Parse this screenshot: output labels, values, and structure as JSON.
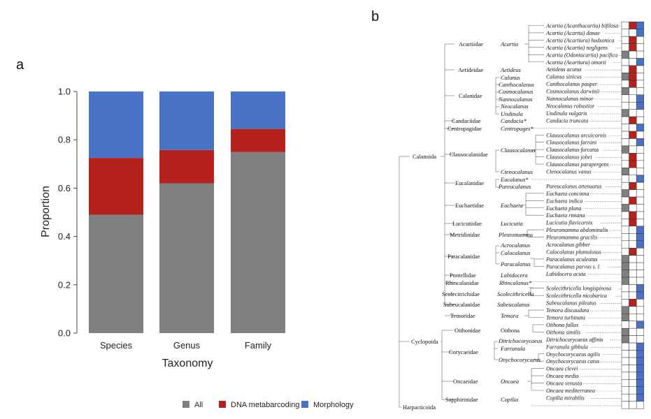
{
  "panel_a": {
    "letter": "a",
    "chart_data": {
      "type": "bar",
      "stacked": true,
      "categories": [
        "Species",
        "Genus",
        "Family"
      ],
      "series": [
        {
          "name": "All",
          "color": "#808080",
          "values": [
            0.49,
            0.62,
            0.75
          ]
        },
        {
          "name": "DNA metabarcoding",
          "color": "#B5211C",
          "values": [
            0.235,
            0.138,
            0.095
          ]
        },
        {
          "name": "Morphology",
          "color": "#4A72C4",
          "values": [
            0.275,
            0.242,
            0.155
          ]
        }
      ],
      "xlabel": "Taxonomy",
      "ylabel": "Proportion",
      "ylim": [
        0,
        1
      ],
      "yticks": [
        "0.0",
        "0.2",
        "0.4",
        "0.6",
        "0.8",
        "1.0"
      ],
      "grid": false,
      "legend_position": "bottom"
    }
  },
  "panel_b": {
    "letter": "b",
    "colors": {
      "all": "#808080",
      "dna": "#B5211C",
      "morph": "#4A72C4"
    },
    "orders": [
      {
        "name": "Calanoida"
      },
      {
        "name": "Cyclopoida"
      },
      {
        "name": "Harpacticoida"
      }
    ],
    "families": [
      {
        "name": "Acartiidae"
      },
      {
        "name": "Aetideidae"
      },
      {
        "name": "Calanidae"
      },
      {
        "name": "Candaciidae"
      },
      {
        "name": "Centropagidae"
      },
      {
        "name": "Clausocalanidae"
      },
      {
        "name": "Eucalanidae"
      },
      {
        "name": "Euchaetidae"
      },
      {
        "name": "Lucicutiidae"
      },
      {
        "name": "Metridinidae"
      },
      {
        "name": "Paracalanidae"
      },
      {
        "name": "Pontellidae"
      },
      {
        "name": "Rhincalanidae"
      },
      {
        "name": "Scolecitrichidae"
      },
      {
        "name": "Subeucalanidae"
      },
      {
        "name": "Temoridae"
      },
      {
        "name": "Oithonidae"
      },
      {
        "name": "Corycaeidae"
      },
      {
        "name": "Oncaeidae"
      },
      {
        "name": "Sapphirinidae"
      }
    ],
    "genera": [
      {
        "name": "Acartia"
      },
      {
        "name": "Aetideus"
      },
      {
        "name": "Calanus"
      },
      {
        "name": "Canthocalanus"
      },
      {
        "name": "Cosmocalanus"
      },
      {
        "name": "Nannocalanus"
      },
      {
        "name": "Neocalanus"
      },
      {
        "name": "Undinula"
      },
      {
        "name": "Candacia*"
      },
      {
        "name": "Centropages*"
      },
      {
        "name": "Clausocalanus"
      },
      {
        "name": "Ctenocalanus"
      },
      {
        "name": "Eucalanus*"
      },
      {
        "name": "Pareucalanus"
      },
      {
        "name": "Euchaeta"
      },
      {
        "name": "Lucicutia"
      },
      {
        "name": "Pleuromamma"
      },
      {
        "name": "Acrocalanus"
      },
      {
        "name": "Calocalanus"
      },
      {
        "name": "Paracalanus"
      },
      {
        "name": "Labidocera"
      },
      {
        "name": "Rhincalanus*"
      },
      {
        "name": "Scolecithricella"
      },
      {
        "name": "Subeucalanus"
      },
      {
        "name": "Temora"
      },
      {
        "name": "Oithona"
      },
      {
        "name": "Ditrichocorycaeus"
      },
      {
        "name": "Farranula"
      },
      {
        "name": "Onychocorycaeus"
      },
      {
        "name": "Oncaea"
      },
      {
        "name": "Copilia"
      }
    ],
    "species": [
      {
        "name": "Acartia (Acanthacartia) bifilosa",
        "cells": [
          0,
          1,
          1
        ]
      },
      {
        "name": "Acartia (Acartia) danae",
        "cells": [
          0,
          0,
          1
        ]
      },
      {
        "name": "Acartia (Acartiura) hudsonica",
        "cells": [
          0,
          1,
          0
        ]
      },
      {
        "name": "Acartia (Acartia) negligens",
        "cells": [
          0,
          1,
          0
        ]
      },
      {
        "name": "Acartia (Odontacartia) pacifica",
        "cells": [
          1,
          0,
          0
        ]
      },
      {
        "name": "Acartia (Acartiura) omorii",
        "cells": [
          0,
          0,
          1
        ]
      },
      {
        "name": "Aetideus acutus",
        "cells": [
          0,
          1,
          0
        ]
      },
      {
        "name": "Calanus sinicus",
        "cells": [
          1,
          1,
          0
        ]
      },
      {
        "name": "Canthocalanus pauper",
        "cells": [
          0,
          1,
          0
        ]
      },
      {
        "name": "Cosmocalanus darwinii",
        "cells": [
          1,
          0,
          0
        ]
      },
      {
        "name": "Nannocalanus minor",
        "cells": [
          0,
          0,
          1
        ]
      },
      {
        "name": "Neocalanus robustior",
        "cells": [
          0,
          0,
          1
        ]
      },
      {
        "name": "Undinula vulgaris",
        "cells": [
          1,
          0,
          0
        ]
      },
      {
        "name": "Candacia truncata",
        "cells": [
          0,
          1,
          0
        ]
      },
      {
        "name": "",
        "cells": [
          0,
          0,
          1
        ]
      },
      {
        "name": "Clausocalanus arcuicornis",
        "cells": [
          0,
          1,
          0
        ]
      },
      {
        "name": "Clausocalanus farrani",
        "cells": [
          0,
          0,
          1
        ]
      },
      {
        "name": "Clausocalanus furcatus",
        "cells": [
          1,
          0,
          0
        ]
      },
      {
        "name": "Clausocalanus jobei",
        "cells": [
          0,
          1,
          0
        ]
      },
      {
        "name": "Clausocalanus parapergens",
        "cells": [
          0,
          1,
          0
        ]
      },
      {
        "name": "Ctenocalanus vanus",
        "cells": [
          1,
          0,
          0
        ]
      },
      {
        "name": "",
        "cells": [
          0,
          0,
          1
        ]
      },
      {
        "name": "Pareucalanus attenuatus",
        "cells": [
          0,
          1,
          0
        ]
      },
      {
        "name": "Euchaeta concinna",
        "cells": [
          1,
          0,
          0
        ]
      },
      {
        "name": "Euchaeta indica",
        "cells": [
          0,
          1,
          0
        ]
      },
      {
        "name": "Euchaeta plana",
        "cells": [
          1,
          0,
          0
        ]
      },
      {
        "name": "Euchaeta rimana",
        "cells": [
          0,
          1,
          0
        ]
      },
      {
        "name": "Lucicutia flavicornis",
        "cells": [
          0,
          1,
          0
        ]
      },
      {
        "name": "Pleuromamma abdominalis",
        "cells": [
          0,
          0,
          1
        ]
      },
      {
        "name": "Pleuromamma gracilis",
        "cells": [
          0,
          0,
          1
        ]
      },
      {
        "name": "Acrocalanus gibber",
        "cells": [
          0,
          0,
          1
        ]
      },
      {
        "name": "Calocalanus plumulosus",
        "cells": [
          0,
          1,
          0
        ]
      },
      {
        "name": "Paracalanus aculeatus",
        "cells": [
          1,
          0,
          0
        ]
      },
      {
        "name": "Paracalanus parvus s. l.",
        "cells": [
          1,
          0,
          0
        ]
      },
      {
        "name": "Labidocera acuta",
        "cells": [
          1,
          0,
          0
        ]
      },
      {
        "name": "",
        "cells": [
          1,
          0,
          0
        ]
      },
      {
        "name": "Scolecithricella longispinosa",
        "cells": [
          0,
          0,
          1
        ]
      },
      {
        "name": "Scolecithricella nicobarica",
        "cells": [
          0,
          0,
          1
        ]
      },
      {
        "name": "Subeucalanus pileatus",
        "cells": [
          0,
          1,
          0
        ]
      },
      {
        "name": "Temora discaudata",
        "cells": [
          1,
          0,
          0
        ]
      },
      {
        "name": "Temora turbinata",
        "cells": [
          1,
          0,
          0
        ]
      },
      {
        "name": "Oithona fallax",
        "cells": [
          0,
          0,
          1
        ]
      },
      {
        "name": "Oithona similis",
        "cells": [
          1,
          0,
          0
        ]
      },
      {
        "name": "Ditrichocorycaeus affinis",
        "cells": [
          1,
          0,
          0
        ]
      },
      {
        "name": "Farranula gibbula",
        "cells": [
          0,
          0,
          1
        ]
      },
      {
        "name": "Onychocorycaeus agilis",
        "cells": [
          0,
          0,
          1
        ]
      },
      {
        "name": "Onychocorycaeus catus",
        "cells": [
          0,
          0,
          1
        ]
      },
      {
        "name": "Oncaea clevei",
        "cells": [
          0,
          0,
          1
        ]
      },
      {
        "name": "Oncaea media",
        "cells": [
          0,
          0,
          1
        ]
      },
      {
        "name": "Oncaea venusta",
        "cells": [
          0,
          0,
          1
        ]
      },
      {
        "name": "Oncaea mediterranea",
        "cells": [
          0,
          0,
          1
        ]
      },
      {
        "name": "Copilia mirabilis",
        "cells": [
          0,
          0,
          1
        ]
      },
      {
        "name": "",
        "cells": [
          0,
          0,
          0
        ]
      }
    ]
  }
}
